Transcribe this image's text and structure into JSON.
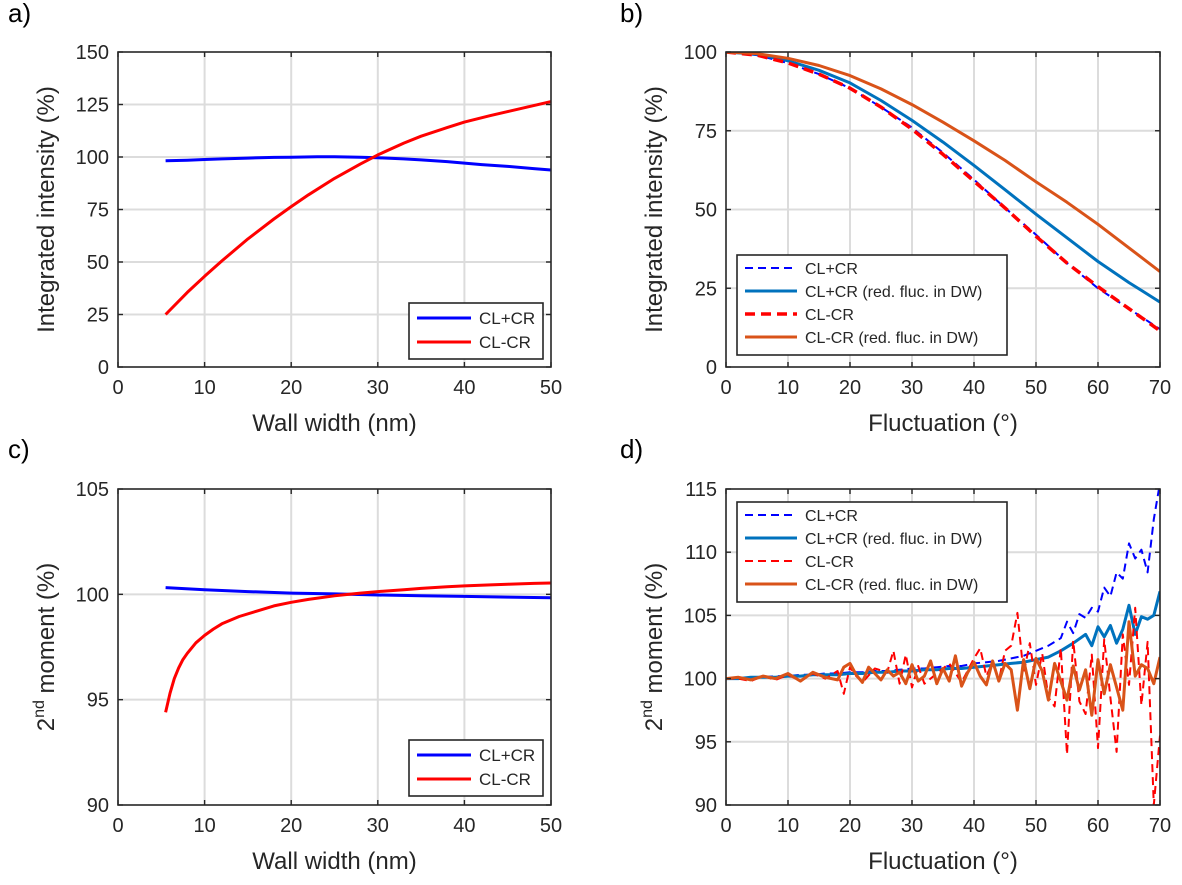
{
  "colors": {
    "blue": "#0000ff",
    "red": "#ff0000",
    "matlab_blue": "#0072bd",
    "matlab_orange": "#d95319"
  },
  "chart_data": [
    {
      "id": "a",
      "panel_label": "a)",
      "type": "line",
      "xlabel": "Wall width (nm)",
      "ylabel": "Integrated intensity (%)",
      "xlim": [
        0,
        50
      ],
      "ylim": [
        0,
        150
      ],
      "xticks": [
        0,
        10,
        20,
        30,
        40,
        50
      ],
      "yticks": [
        0,
        25,
        50,
        75,
        100,
        125,
        150
      ],
      "grid": true,
      "legend_position": "bottom-right",
      "series": [
        {
          "name": "CL+CR",
          "color": "#0000ff",
          "style": "solid",
          "x": [
            5.5,
            8,
            10,
            12,
            15,
            18,
            20,
            23,
            25,
            28,
            30,
            33,
            35,
            38,
            40,
            42,
            45,
            48,
            50
          ],
          "y": [
            98.2,
            98.5,
            98.8,
            99.1,
            99.5,
            99.8,
            99.9,
            100.1,
            100.1,
            99.9,
            99.6,
            99.1,
            98.6,
            97.8,
            97.1,
            96.4,
            95.5,
            94.5,
            93.8
          ]
        },
        {
          "name": "CL-CR",
          "color": "#ff0000",
          "style": "solid",
          "x": [
            5.5,
            8,
            10,
            12,
            15,
            18,
            20,
            22,
            25,
            28,
            30,
            33,
            35,
            38,
            40,
            43,
            45,
            48,
            50
          ],
          "y": [
            25,
            35.5,
            43.2,
            50.5,
            61,
            70.5,
            76.4,
            82,
            89.8,
            96.7,
            101,
            106.6,
            109.9,
            114,
            116.6,
            119.7,
            121.6,
            124.5,
            126.4
          ]
        }
      ]
    },
    {
      "id": "b",
      "panel_label": "b)",
      "type": "line",
      "xlabel": "Fluctuation (°)",
      "ylabel": "Integrated intensity (%)",
      "xlim": [
        0,
        70
      ],
      "ylim": [
        0,
        100
      ],
      "xticks": [
        0,
        10,
        20,
        30,
        40,
        50,
        60,
        70
      ],
      "yticks": [
        0,
        25,
        50,
        75,
        100
      ],
      "grid": true,
      "legend_position": "bottom-left",
      "series": [
        {
          "name": "CL+CR",
          "color": "#0000ff",
          "style": "dashed-thin",
          "x": [
            0,
            5,
            10,
            15,
            20,
            25,
            30,
            35,
            40,
            45,
            50,
            55,
            60,
            65,
            70
          ],
          "y": [
            100,
            99,
            96.5,
            93,
            88.5,
            82.5,
            76,
            68,
            59.5,
            50.5,
            42,
            33,
            25,
            18.5,
            12
          ]
        },
        {
          "name": "CL+CR (red. fluc. in DW)",
          "color": "#0072bd",
          "style": "solid",
          "x": [
            0,
            5,
            10,
            15,
            20,
            25,
            30,
            35,
            40,
            45,
            50,
            55,
            60,
            65,
            70
          ],
          "y": [
            100,
            99.3,
            97.2,
            94.2,
            90.2,
            84.6,
            78.3,
            71.4,
            64,
            56.3,
            48.5,
            41,
            33.5,
            26.8,
            20.6
          ]
        },
        {
          "name": "CL-CR",
          "color": "#ff0000",
          "style": "dashed-thick",
          "x": [
            0,
            5,
            10,
            15,
            20,
            25,
            30,
            35,
            40,
            45,
            50,
            55,
            60,
            65,
            70
          ],
          "y": [
            100,
            99,
            96.5,
            93,
            88.5,
            82.5,
            75.5,
            67.5,
            59,
            50.5,
            41.5,
            33,
            25.5,
            18.5,
            11.5
          ]
        },
        {
          "name": "CL-CR (red. fluc. in DW)",
          "color": "#d95319",
          "style": "solid",
          "x": [
            0,
            5,
            10,
            15,
            20,
            25,
            30,
            35,
            40,
            45,
            50,
            55,
            60,
            65,
            70
          ],
          "y": [
            100,
            99.5,
            98,
            95.7,
            92.5,
            88.3,
            83.3,
            77.7,
            71.8,
            65.6,
            58.8,
            52.3,
            45.3,
            37.8,
            30.3
          ]
        }
      ]
    },
    {
      "id": "c",
      "panel_label": "c)",
      "type": "line",
      "xlabel": "Wall width (nm)",
      "ylabel_prefix": "2",
      "ylabel_sup": "nd",
      "ylabel_suffix": " moment (%)",
      "xlim": [
        0,
        50
      ],
      "ylim": [
        90,
        105
      ],
      "xticks": [
        0,
        10,
        20,
        30,
        40,
        50
      ],
      "yticks": [
        90,
        95,
        100,
        105
      ],
      "grid": true,
      "legend_position": "bottom-right",
      "series": [
        {
          "name": "CL+CR",
          "color": "#0000ff",
          "style": "solid",
          "x": [
            5.5,
            10,
            15,
            20,
            25,
            30,
            35,
            40,
            45,
            50
          ],
          "y": [
            100.32,
            100.22,
            100.13,
            100.06,
            100.02,
            99.97,
            99.93,
            99.9,
            99.87,
            99.84
          ]
        },
        {
          "name": "CL-CR",
          "color": "#ff0000",
          "style": "solid",
          "x": [
            5.5,
            6,
            6.5,
            7,
            7.5,
            8,
            9,
            10,
            11,
            12,
            14,
            16,
            18,
            20,
            22,
            25,
            28,
            30,
            33,
            35,
            38,
            40,
            43,
            45,
            48,
            50
          ],
          "y": [
            94.4,
            95.3,
            96.0,
            96.5,
            96.9,
            97.2,
            97.7,
            98.05,
            98.35,
            98.6,
            98.95,
            99.2,
            99.45,
            99.62,
            99.76,
            99.93,
            100.06,
            100.13,
            100.22,
            100.28,
            100.36,
            100.4,
            100.45,
            100.48,
            100.52,
            100.54
          ]
        }
      ]
    },
    {
      "id": "d",
      "panel_label": "d)",
      "type": "line",
      "xlabel": "Fluctuation (°)",
      "ylabel_prefix": "2",
      "ylabel_sup": "nd",
      "ylabel_suffix": " moment (%)",
      "xlim": [
        0,
        70
      ],
      "ylim": [
        90,
        115
      ],
      "xticks": [
        0,
        10,
        20,
        30,
        40,
        50,
        60,
        70
      ],
      "yticks": [
        90,
        95,
        100,
        105,
        110,
        115
      ],
      "grid": true,
      "legend_position": "top-left",
      "series": [
        {
          "name": "CL+CR",
          "color": "#0000ff",
          "style": "dashed-thin",
          "x": [
            0,
            2,
            4,
            6,
            8,
            10,
            12,
            14,
            16,
            18,
            20,
            22,
            24,
            26,
            28,
            30,
            32,
            34,
            36,
            38,
            40,
            42,
            44,
            46,
            48,
            50,
            52,
            54,
            55,
            56,
            57,
            58,
            59,
            60,
            61,
            62,
            63,
            64,
            65,
            66,
            67,
            68,
            69,
            70
          ],
          "y": [
            100,
            100,
            100.1,
            100.1,
            100.2,
            100.2,
            100.3,
            100.3,
            100.4,
            100.4,
            100.5,
            100.5,
            100.6,
            100.6,
            100.7,
            100.8,
            100.8,
            100.9,
            101,
            101,
            101.2,
            101.3,
            101.4,
            101.6,
            101.8,
            102.2,
            102.6,
            103.2,
            104.5,
            103.6,
            105.1,
            104.8,
            105.6,
            105.3,
            107.2,
            106.5,
            108.4,
            107.9,
            110.7,
            109.5,
            110.2,
            108.4,
            112.6,
            115.5
          ]
        },
        {
          "name": "CL+CR (red. fluc. in DW)",
          "color": "#0072bd",
          "style": "solid",
          "x": [
            0,
            2,
            4,
            6,
            8,
            10,
            12,
            14,
            16,
            18,
            20,
            22,
            24,
            26,
            28,
            30,
            32,
            34,
            36,
            38,
            40,
            42,
            44,
            46,
            48,
            50,
            52,
            54,
            56,
            58,
            59,
            60,
            61,
            62,
            63,
            64,
            65,
            66,
            67,
            68,
            69,
            70
          ],
          "y": [
            100,
            100,
            100.1,
            100.1,
            100.1,
            100.2,
            100.2,
            100.3,
            100.3,
            100.3,
            100.4,
            100.4,
            100.5,
            100.5,
            100.6,
            100.6,
            100.7,
            100.7,
            100.8,
            100.8,
            100.9,
            101,
            101.1,
            101.2,
            101.3,
            101.5,
            101.7,
            102.2,
            102.8,
            103.5,
            102.6,
            104.1,
            103.3,
            104.2,
            102.8,
            103.9,
            105.8,
            103.5,
            104.9,
            104.7,
            105,
            106.9
          ]
        },
        {
          "name": "CL-CR",
          "color": "#ff0000",
          "style": "dashed-thin",
          "x": [
            0,
            2,
            4,
            6,
            8,
            10,
            12,
            14,
            16,
            18,
            19,
            20,
            21,
            22,
            24,
            26,
            27,
            28,
            29,
            30,
            31,
            32,
            34,
            36,
            38,
            40,
            41,
            42,
            43,
            44,
            45,
            46,
            47,
            48,
            49,
            50,
            51,
            52,
            53,
            54,
            55,
            56,
            57,
            58,
            59,
            60,
            61,
            62,
            63,
            64,
            65,
            66,
            67,
            68,
            69,
            70
          ],
          "y": [
            100,
            100,
            99.8,
            100.2,
            99.9,
            100.3,
            99.8,
            100.4,
            100,
            100.6,
            98.8,
            100.9,
            100.2,
            99.7,
            100.8,
            100.5,
            102.2,
            99.6,
            101.9,
            99.3,
            101,
            99.6,
            100.4,
            101.2,
            99.7,
            101.6,
            102.4,
            100.2,
            101.3,
            99.8,
            102.2,
            102.6,
            105.2,
            100.4,
            102.8,
            99.5,
            102,
            98.5,
            97.8,
            102.4,
            94,
            103,
            98.2,
            97.2,
            101.9,
            94.5,
            103.1,
            98.5,
            94.2,
            103.5,
            99.5,
            105.6,
            97.9,
            102.9,
            90,
            95.5
          ]
        },
        {
          "name": "CL-CR (red. fluc. in DW)",
          "color": "#d95319",
          "style": "solid",
          "x": [
            0,
            2,
            4,
            6,
            8,
            10,
            12,
            14,
            16,
            18,
            19,
            20,
            21,
            22,
            23,
            24,
            25,
            26,
            27,
            28,
            29,
            30,
            31,
            32,
            33,
            34,
            35,
            36,
            37,
            38,
            39,
            40,
            41,
            42,
            43,
            44,
            45,
            46,
            47,
            48,
            49,
            50,
            51,
            52,
            53,
            54,
            55,
            56,
            57,
            58,
            59,
            60,
            61,
            62,
            63,
            64,
            65,
            66,
            67,
            68,
            69,
            70
          ],
          "y": [
            100,
            100.1,
            99.9,
            100.2,
            100,
            100.4,
            99.8,
            100.5,
            100.1,
            99.9,
            100.9,
            101.2,
            100.3,
            99.7,
            100.9,
            100.4,
            99.9,
            100.7,
            100.2,
            100.5,
            99.6,
            101.1,
            99.8,
            100.2,
            101.4,
            99.6,
            100.8,
            99.8,
            101.8,
            99.4,
            100.5,
            101.3,
            100.2,
            99.5,
            101.4,
            99.8,
            101.2,
            100.7,
            97.5,
            101.5,
            99.2,
            101.6,
            100.6,
            98.3,
            101.2,
            99.8,
            98.3,
            101,
            99.1,
            100.7,
            97.1,
            101.5,
            98.8,
            101.1,
            99.3,
            97.5,
            104.5,
            100.2,
            101.1,
            100.8,
            99.6,
            101.7
          ]
        }
      ]
    }
  ]
}
